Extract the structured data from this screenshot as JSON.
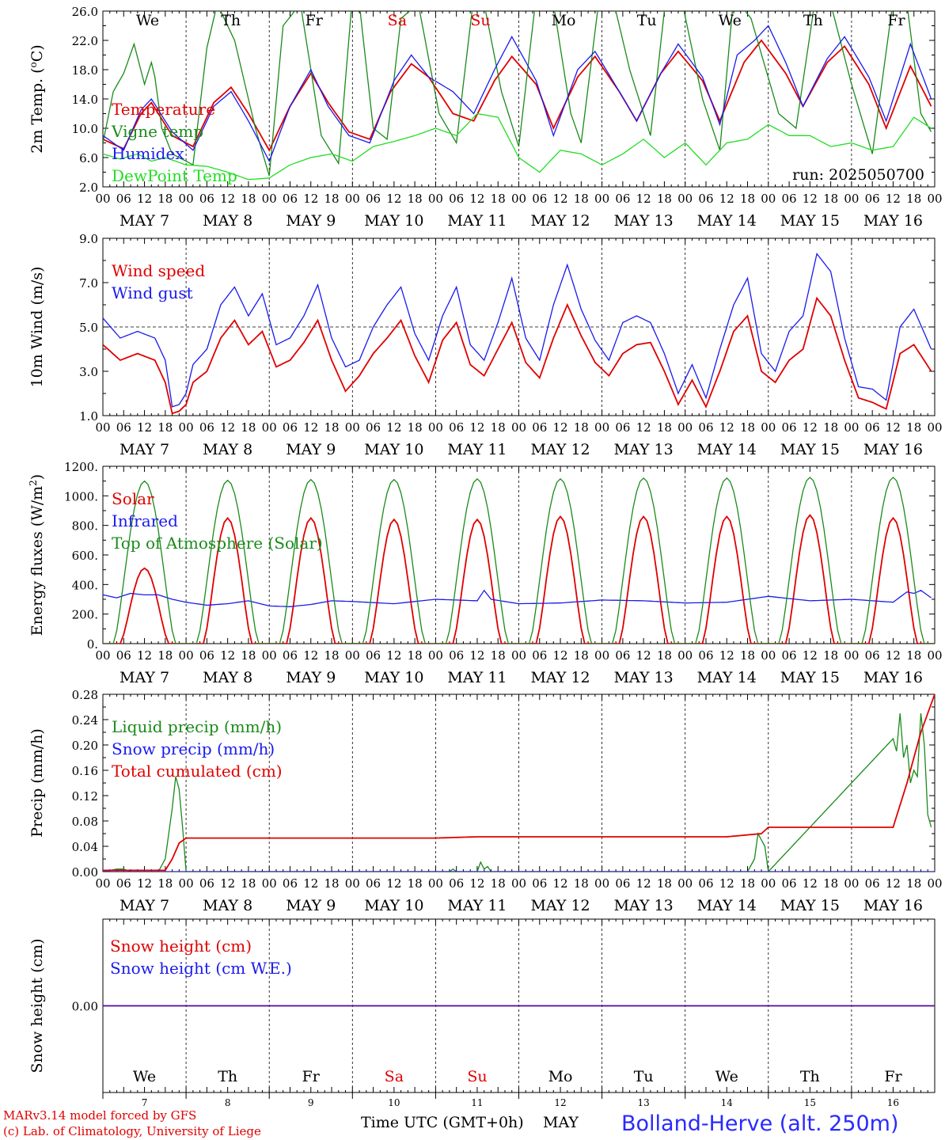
{
  "colors": {
    "red": "#e00000",
    "green_dark": "#1a8a1a",
    "green_light": "#22dd22",
    "blue": "#1a1aee",
    "weekend": "#e00000",
    "station": "#2a2aff"
  },
  "x_hour_labels": [
    "00",
    "06",
    "12",
    "18"
  ],
  "last_hour_label": "00",
  "days": [
    "MAY  7",
    "MAY  8",
    "MAY  9",
    "MAY 10",
    "MAY 11",
    "MAY 12",
    "MAY 13",
    "MAY 14",
    "MAY 15",
    "MAY 16"
  ],
  "weekdays": [
    {
      "label": "We",
      "weekend": false
    },
    {
      "label": "Th",
      "weekend": false
    },
    {
      "label": "Fr",
      "weekend": false
    },
    {
      "label": "Sa",
      "weekend": true
    },
    {
      "label": "Su",
      "weekend": true
    },
    {
      "label": "Mo",
      "weekend": false
    },
    {
      "label": "Tu",
      "weekend": false
    },
    {
      "label": "We",
      "weekend": false
    },
    {
      "label": "Th",
      "weekend": false
    },
    {
      "label": "Fr",
      "weekend": false
    }
  ],
  "bottom_day_numbers": [
    "7",
    "8",
    "9",
    "10",
    "11",
    "12",
    "13",
    "14",
    "15",
    "16"
  ],
  "run_label": "run: 2025050700",
  "footer": {
    "credit_line1": "MARv3.14 model forced by GFS",
    "credit_line2": "(c) Lab. of Climatology, University of Liege",
    "x_axis_title": "Time UTC (GMT+0h)",
    "month": "MAY",
    "station": "Bolland-Herve (alt. 250m)"
  },
  "chart_data": [
    {
      "type": "line",
      "id": "temperature",
      "ylabel": "2m Temp. (oC)",
      "ylim": [
        2,
        26
      ],
      "yticks": [
        "2.0",
        "6.0",
        "10.0",
        "14.0",
        "18.0",
        "22.0",
        "26.0"
      ],
      "x_unit": "hours since May 7 00 UTC",
      "series": [
        {
          "name": "Temperature",
          "color": "red",
          "x": [
            0,
            6,
            11,
            14,
            20,
            26,
            32,
            37,
            42,
            48,
            54,
            60,
            65,
            71,
            77,
            83,
            89,
            94,
            101,
            107,
            113,
            118,
            125,
            130,
            137,
            142,
            149,
            154,
            161,
            166,
            173,
            178,
            185,
            190,
            197,
            202,
            209,
            214,
            221,
            226,
            233,
            239
          ],
          "y": [
            8.5,
            7.2,
            12.0,
            13.5,
            9.0,
            7.5,
            13.5,
            15.6,
            12.0,
            7.0,
            13.0,
            17.5,
            13.5,
            9.5,
            8.5,
            15.0,
            18.8,
            17.0,
            12.0,
            11.0,
            16.5,
            19.8,
            16.0,
            10.0,
            17.0,
            19.8,
            15.0,
            11.0,
            17.5,
            20.5,
            16.5,
            11.0,
            19.0,
            22.0,
            17.5,
            13.0,
            19.0,
            21.2,
            16.0,
            10.0,
            18.5,
            13.0
          ]
        },
        {
          "name": "Vigne temp",
          "color": "green_dark",
          "x": [
            0,
            3,
            6,
            9,
            12,
            14,
            15,
            17,
            20,
            24,
            26,
            30,
            33,
            38,
            44,
            48,
            52,
            57,
            60,
            63,
            68,
            72,
            74,
            78,
            82,
            86,
            91,
            97,
            102,
            107,
            110,
            115,
            120,
            125,
            130,
            133,
            135,
            138,
            143,
            147,
            152,
            158,
            162,
            167,
            173,
            178,
            182,
            187,
            195,
            200,
            205,
            210,
            216,
            222,
            228,
            232,
            236,
            239
          ],
          "y": [
            8.0,
            15.0,
            17.5,
            21.5,
            16.0,
            19.0,
            17.0,
            10.0,
            6.5,
            5.5,
            5.0,
            21.0,
            27.0,
            22.0,
            10.0,
            3.5,
            24.0,
            27.0,
            18.0,
            9.0,
            5.2,
            28.0,
            27.0,
            10.0,
            8.5,
            25.0,
            27.0,
            12.0,
            8.0,
            28.0,
            27.0,
            15.0,
            7.5,
            28.0,
            27.0,
            18.0,
            12.0,
            8.0,
            27.0,
            28.0,
            18.0,
            9.0,
            26.0,
            27.5,
            14.0,
            7.0,
            28.0,
            25.0,
            12.0,
            10.0,
            26.0,
            27.0,
            16.0,
            6.5,
            27.5,
            27.0,
            12.0,
            9.5
          ]
        },
        {
          "name": "Humidex",
          "color": "blue",
          "x": [
            0,
            6,
            11,
            14,
            20,
            26,
            32,
            37,
            42,
            48,
            54,
            60,
            65,
            71,
            77,
            84,
            89,
            94,
            101,
            107,
            113,
            118,
            125,
            130,
            137,
            142,
            149,
            154,
            161,
            166,
            173,
            178,
            183,
            188,
            192,
            197,
            202,
            209,
            214,
            221,
            226,
            233,
            239
          ],
          "y": [
            9.0,
            7.0,
            12.5,
            14.0,
            9.5,
            7.0,
            13.0,
            15.0,
            11.0,
            5.5,
            13.0,
            18.0,
            13.0,
            9.0,
            8.0,
            16.5,
            20.0,
            17.0,
            15.0,
            12.0,
            18.0,
            22.5,
            16.5,
            9.0,
            18.0,
            20.5,
            15.0,
            11.0,
            17.5,
            21.5,
            17.0,
            10.5,
            20.0,
            22.0,
            24.0,
            19.0,
            13.0,
            19.5,
            22.5,
            17.0,
            11.0,
            21.5,
            14.0
          ]
        },
        {
          "name": "DewPoint Temp",
          "color": "green_light",
          "x": [
            0,
            5,
            10,
            14,
            18,
            24,
            30,
            36,
            42,
            48,
            54,
            60,
            66,
            72,
            78,
            84,
            90,
            96,
            102,
            108,
            114,
            120,
            126,
            132,
            138,
            144,
            150,
            156,
            162,
            168,
            174,
            180,
            186,
            192,
            198,
            204,
            210,
            216,
            222,
            228,
            234,
            239
          ],
          "y": [
            6.5,
            5.8,
            6.5,
            5.5,
            6.0,
            5.0,
            4.8,
            4.0,
            3.0,
            3.2,
            5.0,
            6.0,
            6.5,
            5.5,
            7.5,
            8.2,
            9.0,
            10.0,
            9.0,
            12.0,
            11.5,
            6.0,
            4.0,
            7.0,
            6.5,
            5.0,
            6.5,
            8.5,
            6.0,
            8.0,
            5.0,
            8.0,
            8.5,
            10.5,
            9.0,
            9.0,
            7.5,
            8.0,
            7.0,
            7.5,
            11.5,
            10.0
          ]
        }
      ]
    },
    {
      "type": "line",
      "id": "wind",
      "ylabel": "10m Wind (m/s)",
      "ylim": [
        1,
        9
      ],
      "yticks": [
        "1.0",
        "3.0",
        "5.0",
        "7.0",
        "9.0"
      ],
      "reference_line": 5.0,
      "series": [
        {
          "name": "Wind speed",
          "color": "red",
          "x": [
            0,
            5,
            10,
            15,
            18,
            20,
            22,
            24,
            26,
            30,
            34,
            38,
            42,
            46,
            50,
            54,
            58,
            62,
            66,
            70,
            74,
            78,
            82,
            86,
            90,
            94,
            98,
            102,
            106,
            110,
            114,
            118,
            122,
            126,
            130,
            134,
            138,
            142,
            146,
            150,
            154,
            158,
            162,
            166,
            170,
            174,
            178,
            182,
            186,
            190,
            194,
            198,
            202,
            206,
            210,
            214,
            218,
            222,
            226,
            230,
            234,
            239
          ],
          "y": [
            4.2,
            3.5,
            3.8,
            3.5,
            2.5,
            1.1,
            1.2,
            1.5,
            2.5,
            3.0,
            4.5,
            5.3,
            4.2,
            4.8,
            3.2,
            3.5,
            4.3,
            5.3,
            3.5,
            2.1,
            2.8,
            3.8,
            4.5,
            5.3,
            3.7,
            2.5,
            4.4,
            5.2,
            3.3,
            2.8,
            4.0,
            5.2,
            3.4,
            2.7,
            4.5,
            6.0,
            4.6,
            3.4,
            2.8,
            3.8,
            4.2,
            4.3,
            3.0,
            1.5,
            2.6,
            1.4,
            3.0,
            4.8,
            5.5,
            3.0,
            2.5,
            3.5,
            4.0,
            6.3,
            5.5,
            3.5,
            1.8,
            1.6,
            1.3,
            3.8,
            4.2,
            3.0
          ]
        },
        {
          "name": "Wind gust",
          "color": "blue",
          "x": [
            0,
            5,
            10,
            15,
            18,
            20,
            22,
            24,
            26,
            30,
            34,
            38,
            42,
            46,
            50,
            54,
            58,
            62,
            66,
            70,
            74,
            78,
            82,
            86,
            90,
            94,
            98,
            102,
            106,
            110,
            114,
            118,
            122,
            126,
            130,
            134,
            138,
            142,
            146,
            150,
            154,
            158,
            162,
            166,
            170,
            174,
            178,
            182,
            186,
            190,
            194,
            198,
            202,
            206,
            210,
            214,
            218,
            222,
            226,
            230,
            234,
            239
          ],
          "y": [
            5.4,
            4.5,
            4.8,
            4.5,
            3.5,
            1.4,
            1.5,
            2.0,
            3.3,
            4.0,
            6.0,
            6.8,
            5.5,
            6.5,
            4.2,
            4.5,
            5.5,
            6.9,
            4.5,
            3.2,
            3.5,
            5.0,
            6.0,
            6.8,
            4.7,
            3.5,
            5.5,
            6.8,
            4.2,
            3.5,
            5.2,
            7.2,
            4.5,
            3.5,
            6.0,
            7.8,
            5.8,
            4.4,
            3.5,
            5.2,
            5.5,
            5.2,
            3.8,
            2.0,
            3.3,
            1.8,
            4.0,
            6.0,
            7.2,
            3.8,
            3.0,
            4.8,
            5.5,
            8.3,
            7.5,
            4.5,
            2.3,
            2.2,
            1.7,
            5.0,
            5.8,
            4.0
          ]
        }
      ]
    },
    {
      "type": "line",
      "id": "energy",
      "ylabel": "Energy fluxes (W/m2)",
      "ylim": [
        0,
        1200
      ],
      "yticks": [
        "0.",
        "200.",
        "400.",
        "600.",
        "800.",
        "1000.",
        "1200."
      ],
      "series": [
        {
          "name": "Solar",
          "color": "red",
          "daily_peaks": [
            510,
            850,
            850,
            840,
            840,
            860,
            860,
            860,
            870,
            850
          ]
        },
        {
          "name": "Infrared",
          "color": "blue",
          "x": [
            0,
            4,
            8,
            12,
            16,
            20,
            24,
            30,
            36,
            42,
            48,
            54,
            60,
            66,
            72,
            84,
            96,
            108,
            110,
            112,
            120,
            132,
            144,
            156,
            168,
            180,
            192,
            204,
            216,
            228,
            232,
            234,
            236,
            239
          ],
          "y": [
            330,
            310,
            340,
            330,
            330,
            300,
            280,
            260,
            270,
            290,
            255,
            250,
            265,
            290,
            285,
            270,
            300,
            290,
            360,
            300,
            270,
            275,
            295,
            290,
            275,
            280,
            320,
            290,
            300,
            280,
            350,
            340,
            360,
            310
          ]
        },
        {
          "name": "Top of Atmosphere (Solar)",
          "color": "green_dark",
          "daily_peaks": [
            1100,
            1105,
            1110,
            1110,
            1115,
            1115,
            1120,
            1120,
            1125,
            1125
          ]
        }
      ]
    },
    {
      "type": "line",
      "id": "precip",
      "ylabel": "Precip (mm/h)",
      "ylim": [
        0,
        0.28
      ],
      "yticks": [
        "0.00",
        "0.04",
        "0.08",
        "0.12",
        "0.16",
        "0.20",
        "0.24",
        "0.28"
      ],
      "series": [
        {
          "name": "Liquid precip (mm/h)",
          "color": "green_dark",
          "x": [
            0,
            4,
            6,
            8,
            16,
            18,
            20,
            21,
            22,
            23,
            24,
            100,
            101,
            102,
            108,
            109,
            110,
            111,
            112,
            186,
            188,
            189,
            190,
            191,
            192,
            228,
            229,
            230,
            231,
            232,
            233,
            234,
            235,
            236,
            237,
            238,
            239
          ],
          "y": [
            0,
            0.004,
            0.004,
            0,
            0,
            0.02,
            0.1,
            0.15,
            0.13,
            0.07,
            0,
            0,
            0.004,
            0,
            0,
            0.015,
            0.004,
            0.008,
            0,
            0,
            0.02,
            0.06,
            0.05,
            0.04,
            0,
            0.21,
            0.19,
            0.25,
            0.18,
            0.2,
            0.14,
            0.16,
            0.15,
            0.25,
            0.2,
            0.09,
            0.07
          ]
        },
        {
          "name": "Snow precip (mm/h)",
          "color": "blue",
          "x": [
            0,
            240
          ],
          "y": [
            0,
            0
          ]
        },
        {
          "name": "Total cumulated (cm)",
          "color": "red",
          "x": [
            0,
            18,
            20,
            22,
            24,
            96,
            108,
            180,
            190,
            192,
            228,
            232,
            236,
            240
          ],
          "y": [
            0.002,
            0.002,
            0.02,
            0.045,
            0.053,
            0.053,
            0.055,
            0.055,
            0.06,
            0.07,
            0.07,
            0.14,
            0.22,
            0.28
          ]
        }
      ]
    },
    {
      "type": "line",
      "id": "snow",
      "ylabel": "Snow height (cm)",
      "ylim": [
        -1,
        1
      ],
      "yticks": [
        "0.00"
      ],
      "series": [
        {
          "name": "Snow height (cm)",
          "color": "red",
          "x": [
            0,
            240
          ],
          "y": [
            0,
            0
          ]
        },
        {
          "name": "Snow height (cm W.E.)",
          "color": "blue",
          "x": [
            0,
            240
          ],
          "y": [
            0,
            0
          ]
        }
      ]
    }
  ]
}
